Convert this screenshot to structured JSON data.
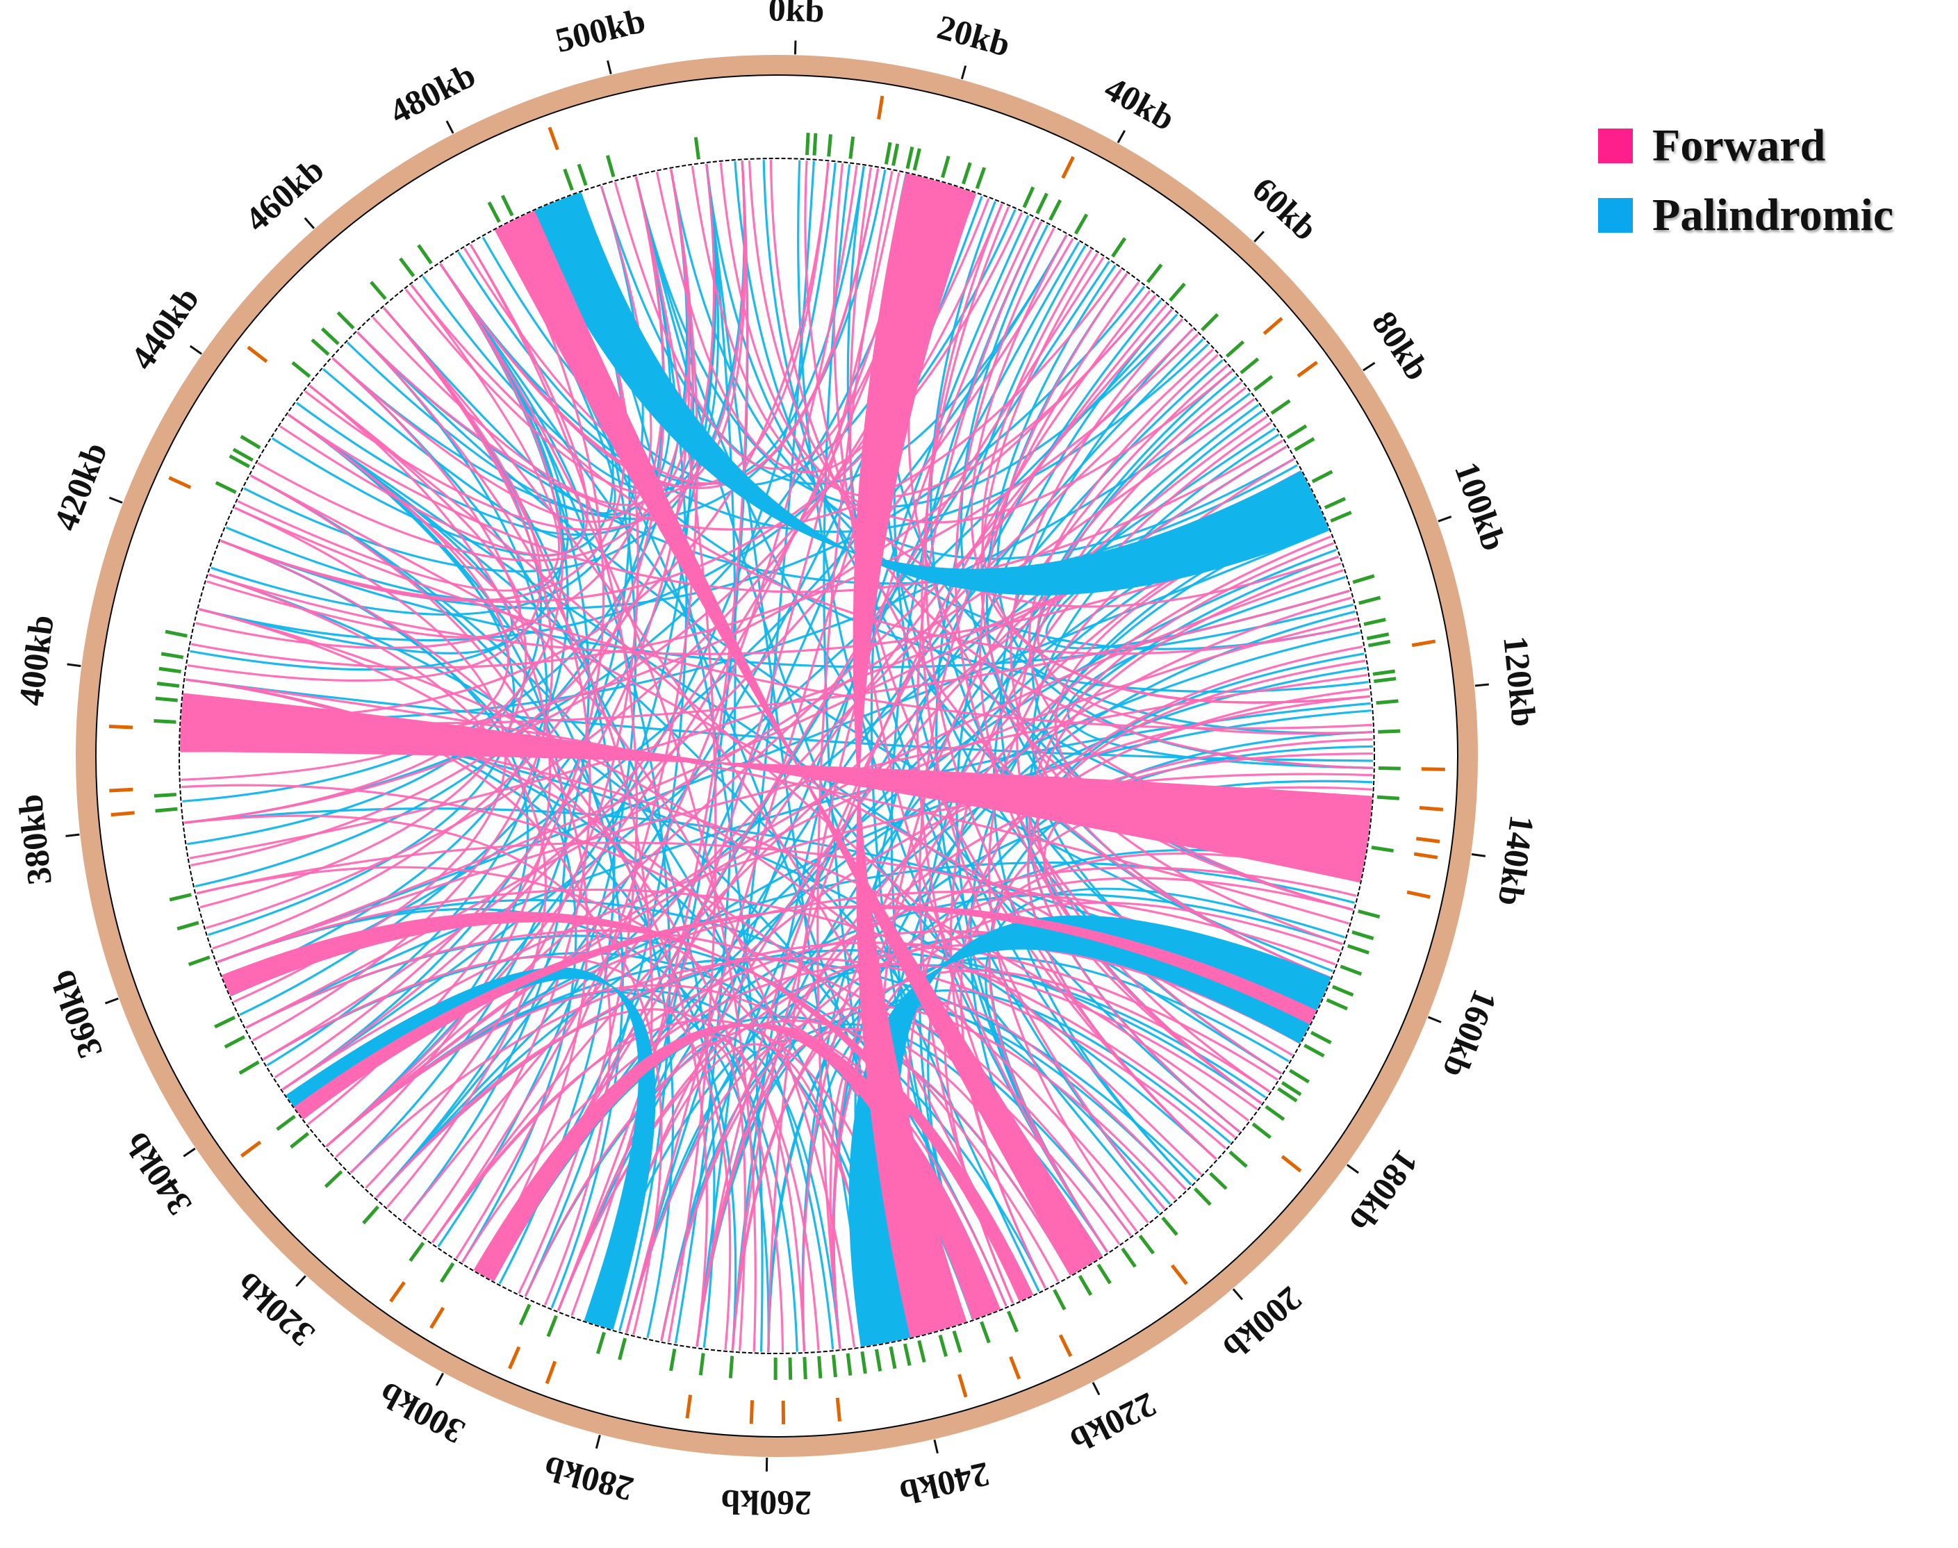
{
  "legend": [
    {
      "label": "Forward",
      "color": "#ff1f8a"
    },
    {
      "label": "Palindromic",
      "color": "#0aa6ee"
    }
  ],
  "genome": {
    "length_kb": 522,
    "tick_labels": [
      "0kb",
      "20kb",
      "40kb",
      "60kb",
      "80kb",
      "100kb",
      "120kb",
      "140kb",
      "160kb",
      "180kb",
      "200kb",
      "220kb",
      "240kb",
      "260kb",
      "280kb",
      "300kb",
      "320kb",
      "340kb",
      "360kb",
      "380kb",
      "400kb",
      "420kb",
      "440kb",
      "460kb",
      "480kb",
      "500kb"
    ],
    "tick_values_kb": [
      0,
      20,
      40,
      60,
      80,
      100,
      120,
      140,
      160,
      180,
      200,
      220,
      240,
      260,
      280,
      300,
      320,
      340,
      360,
      380,
      400,
      420,
      440,
      460,
      480,
      500
    ]
  },
  "colors": {
    "ring": "#deaa87",
    "forward_link": "#ff69b4",
    "palindromic_link": "#11b5ec",
    "green_marker": "#2e9e2a",
    "orange_marker": "#e06400"
  },
  "green_markers_kb": [
    2,
    3,
    5,
    8,
    13,
    14,
    16,
    17,
    21,
    24,
    26,
    33,
    35,
    37,
    41,
    47,
    53,
    57,
    63,
    68,
    71,
    74,
    78,
    82,
    84,
    89,
    93,
    95,
    104,
    107,
    110,
    112,
    113,
    117,
    118,
    121,
    125,
    130,
    134,
    141,
    150,
    153,
    155,
    158,
    161,
    163,
    168,
    170,
    174,
    176,
    177,
    180,
    183,
    188,
    192,
    195,
    201,
    205,
    208,
    212,
    215,
    219,
    226,
    230,
    234,
    236,
    239,
    241,
    243,
    245,
    247,
    249,
    251,
    253,
    255,
    257,
    259,
    265,
    269,
    273,
    280,
    283,
    290,
    294,
    306,
    311,
    319,
    326,
    333,
    336,
    345,
    349,
    352,
    361,
    366,
    370,
    382,
    384,
    394,
    397,
    399,
    401,
    403,
    406,
    427,
    431,
    432,
    434,
    446,
    450,
    452,
    455,
    461,
    466,
    469,
    480,
    482,
    491,
    493,
    497,
    509
  ],
  "orange_markers_kb": [
    11,
    36,
    69,
    76,
    114,
    130,
    135,
    139,
    141,
    146,
    184,
    204,
    221,
    228,
    235,
    251,
    258,
    262,
    270,
    288,
    293,
    304,
    310,
    336,
    382,
    385,
    393,
    425,
    444,
    491
  ],
  "forward_ribbons": [
    {
      "a": [
        390,
        398
      ],
      "b": [
        134,
        146
      ]
    },
    {
      "a": [
        479,
        485
      ],
      "b": [
        211,
        216
      ]
    },
    {
      "a": [
        16,
        26
      ],
      "b": [
        232,
        240
      ]
    },
    {
      "a": [
        300,
        303
      ],
      "b": [
        227,
        231
      ]
    },
    {
      "a": [
        335,
        337
      ],
      "b": [
        165,
        167
      ]
    },
    {
      "a": [
        355,
        358
      ],
      "b": [
        222,
        224
      ]
    }
  ],
  "palindromic_ribbons": [
    {
      "a": [
        484,
        492
      ],
      "b": [
        87,
        96
      ]
    },
    {
      "a": [
        237,
        247
      ],
      "b": [
        160,
        170
      ]
    },
    {
      "a": [
        282,
        286
      ],
      "b": [
        335,
        339
      ]
    }
  ],
  "forward_links": [
    [
      5,
      395
    ],
    [
      9,
      310
    ],
    [
      12,
      470
    ],
    [
      14,
      250
    ],
    [
      18,
      330
    ],
    [
      22,
      150
    ],
    [
      24,
      280
    ],
    [
      28,
      380
    ],
    [
      31,
      200
    ],
    [
      33,
      420
    ],
    [
      35,
      260
    ],
    [
      38,
      175
    ],
    [
      41,
      345
    ],
    [
      44,
      120
    ],
    [
      46,
      300
    ],
    [
      49,
      455
    ],
    [
      52,
      225
    ],
    [
      55,
      390
    ],
    [
      57,
      270
    ],
    [
      60,
      160
    ],
    [
      63,
      405
    ],
    [
      66,
      315
    ],
    [
      69,
      240
    ],
    [
      72,
      125
    ],
    [
      75,
      350
    ],
    [
      78,
      285
    ],
    [
      82,
      440
    ],
    [
      85,
      205
    ],
    [
      88,
      375
    ],
    [
      91,
      255
    ],
    [
      95,
      415
    ],
    [
      98,
      185
    ],
    [
      102,
      330
    ],
    [
      106,
      270
    ],
    [
      110,
      465
    ],
    [
      113,
      220
    ],
    [
      117,
      360
    ],
    [
      120,
      300
    ],
    [
      124,
      425
    ],
    [
      128,
      180
    ],
    [
      131,
      340
    ],
    [
      148,
      290
    ],
    [
      152,
      400
    ],
    [
      156,
      250
    ],
    [
      162,
      370
    ],
    [
      168,
      310
    ],
    [
      172,
      430
    ],
    [
      178,
      265
    ],
    [
      183,
      395
    ],
    [
      188,
      325
    ],
    [
      193,
      445
    ],
    [
      198,
      280
    ],
    [
      203,
      410
    ],
    [
      208,
      350
    ],
    [
      213,
      270
    ],
    [
      218,
      385
    ],
    [
      223,
      460
    ],
    [
      228,
      330
    ],
    [
      233,
      400
    ],
    [
      243,
      370
    ],
    [
      248,
      440
    ],
    [
      253,
      320
    ],
    [
      258,
      410
    ],
    [
      262,
      470
    ],
    [
      266,
      345
    ],
    [
      270,
      420
    ],
    [
      274,
      500
    ],
    [
      279,
      380
    ],
    [
      284,
      455
    ],
    [
      288,
      515
    ],
    [
      292,
      400
    ],
    [
      296,
      475
    ],
    [
      302,
      430
    ],
    [
      306,
      505
    ],
    [
      312,
      460
    ],
    [
      318,
      415
    ],
    [
      322,
      490
    ],
    [
      328,
      445
    ],
    [
      334,
      480
    ],
    [
      342,
      505
    ],
    [
      348,
      460
    ],
    [
      354,
      425
    ],
    [
      362,
      500
    ],
    [
      368,
      450
    ],
    [
      374,
      510
    ],
    [
      380,
      470
    ],
    [
      386,
      440
    ],
    [
      402,
      460
    ],
    [
      408,
      500
    ],
    [
      414,
      445
    ],
    [
      420,
      490
    ],
    [
      426,
      465
    ],
    [
      432,
      505
    ],
    [
      438,
      475
    ],
    [
      444,
      515
    ],
    [
      450,
      495
    ],
    [
      458,
      505
    ],
    [
      464,
      515
    ],
    [
      470,
      5
    ],
    [
      474,
      12
    ],
    [
      497,
      20
    ],
    [
      503,
      30
    ],
    [
      508,
      55
    ],
    [
      512,
      70
    ],
    [
      516,
      100
    ],
    [
      519,
      130
    ],
    [
      2,
      160
    ],
    [
      7,
      190
    ],
    [
      11,
      210
    ],
    [
      15,
      290
    ],
    [
      20,
      340
    ],
    [
      26,
      365
    ],
    [
      30,
      190
    ],
    [
      36,
      215
    ],
    [
      40,
      120
    ],
    [
      45,
      155
    ],
    [
      50,
      180
    ],
    [
      54,
      265
    ],
    [
      58,
      300
    ],
    [
      62,
      330
    ],
    [
      67,
      140
    ],
    [
      73,
      178
    ],
    [
      79,
      220
    ],
    [
      83,
      310
    ],
    [
      87,
      360
    ],
    [
      92,
      150
    ],
    [
      97,
      250
    ],
    [
      101,
      180
    ],
    [
      105,
      395
    ],
    [
      109,
      330
    ],
    [
      115,
      190
    ],
    [
      119,
      235
    ],
    [
      126,
      275
    ],
    [
      133,
      210
    ],
    [
      145,
      225
    ],
    [
      150,
      265
    ],
    [
      158,
      330
    ],
    [
      164,
      275
    ],
    [
      170,
      290
    ],
    [
      176,
      320
    ],
    [
      181,
      305
    ],
    [
      186,
      360
    ],
    [
      196,
      235
    ],
    [
      206,
      250
    ],
    [
      216,
      295
    ],
    [
      226,
      300
    ],
    [
      238,
      310
    ],
    [
      244,
      285
    ],
    [
      255,
      300
    ],
    [
      264,
      290
    ]
  ],
  "palindromic_links": [
    [
      3,
      270
    ],
    [
      6,
      330
    ],
    [
      10,
      200
    ],
    [
      13,
      450
    ],
    [
      17,
      125
    ],
    [
      19,
      380
    ],
    [
      23,
      230
    ],
    [
      27,
      300
    ],
    [
      29,
      170
    ],
    [
      32,
      410
    ],
    [
      34,
      265
    ],
    [
      37,
      150
    ],
    [
      40,
      355
    ],
    [
      43,
      210
    ],
    [
      47,
      300
    ],
    [
      50,
      130
    ],
    [
      53,
      420
    ],
    [
      56,
      245
    ],
    [
      59,
      340
    ],
    [
      62,
      180
    ],
    [
      65,
      470
    ],
    [
      68,
      275
    ],
    [
      71,
      150
    ],
    [
      74,
      395
    ],
    [
      77,
      230
    ],
    [
      80,
      320
    ],
    [
      83,
      105
    ],
    [
      86,
      455
    ],
    [
      90,
      270
    ],
    [
      93,
      185
    ],
    [
      96,
      360
    ],
    [
      100,
      240
    ],
    [
      103,
      130
    ],
    [
      107,
      420
    ],
    [
      111,
      300
    ],
    [
      114,
      190
    ],
    [
      118,
      470
    ],
    [
      121,
      350
    ],
    [
      125,
      230
    ],
    [
      129,
      400
    ],
    [
      132,
      270
    ],
    [
      149,
      330
    ],
    [
      154,
      210
    ],
    [
      159,
      455
    ],
    [
      164,
      380
    ],
    [
      169,
      250
    ],
    [
      175,
      440
    ],
    [
      180,
      320
    ],
    [
      185,
      500
    ],
    [
      190,
      395
    ],
    [
      196,
      270
    ],
    [
      201,
      470
    ],
    [
      206,
      360
    ],
    [
      211,
      440
    ],
    [
      216,
      300
    ],
    [
      221,
      500
    ],
    [
      226,
      415
    ],
    [
      231,
      345
    ],
    [
      236,
      480
    ],
    [
      241,
      400
    ],
    [
      246,
      510
    ],
    [
      251,
      430
    ],
    [
      256,
      360
    ],
    [
      261,
      490
    ],
    [
      265,
      400
    ],
    [
      269,
      450
    ],
    [
      273,
      510
    ],
    [
      277,
      430
    ],
    [
      281,
      470
    ],
    [
      286,
      515
    ],
    [
      291,
      440
    ],
    [
      295,
      500
    ],
    [
      299,
      460
    ],
    [
      305,
      420
    ],
    [
      309,
      485
    ],
    [
      315,
      440
    ],
    [
      320,
      505
    ],
    [
      325,
      470
    ],
    [
      330,
      420
    ],
    [
      340,
      490
    ],
    [
      344,
      455
    ],
    [
      352,
      510
    ],
    [
      357,
      470
    ],
    [
      364,
      440
    ],
    [
      371,
      500
    ],
    [
      377,
      460
    ],
    [
      383,
      505
    ],
    [
      404,
      470
    ],
    [
      410,
      440
    ],
    [
      416,
      495
    ],
    [
      422,
      470
    ],
    [
      428,
      515
    ],
    [
      436,
      485
    ],
    [
      442,
      510
    ],
    [
      448,
      470
    ],
    [
      453,
      500
    ],
    [
      460,
      480
    ],
    [
      467,
      510
    ],
    [
      473,
      10
    ],
    [
      477,
      25
    ],
    [
      495,
      40
    ],
    [
      500,
      60
    ],
    [
      505,
      85
    ],
    [
      510,
      110
    ],
    [
      514,
      140
    ],
    [
      518,
      160
    ],
    [
      1,
      210
    ],
    [
      8,
      240
    ],
    [
      16,
      175
    ],
    [
      21,
      195
    ],
    [
      25,
      320
    ],
    [
      36,
      230
    ],
    [
      42,
      280
    ],
    [
      48,
      160
    ],
    [
      58,
      210
    ],
    [
      64,
      290
    ],
    [
      70,
      195
    ],
    [
      76,
      255
    ],
    [
      81,
      170
    ],
    [
      89,
      290
    ],
    [
      94,
      215
    ],
    [
      99,
      300
    ],
    [
      108,
      250
    ],
    [
      116,
      280
    ],
    [
      122,
      320
    ],
    [
      127,
      210
    ],
    [
      144,
      260
    ],
    [
      155,
      300
    ],
    [
      166,
      285
    ],
    [
      173,
      260
    ],
    [
      179,
      295
    ],
    [
      187,
      255
    ],
    [
      194,
      330
    ],
    [
      199,
      240
    ],
    [
      210,
      275
    ],
    [
      220,
      350
    ],
    [
      230,
      280
    ],
    [
      242,
      330
    ],
    [
      250,
      300
    ],
    [
      260,
      330
    ]
  ]
}
